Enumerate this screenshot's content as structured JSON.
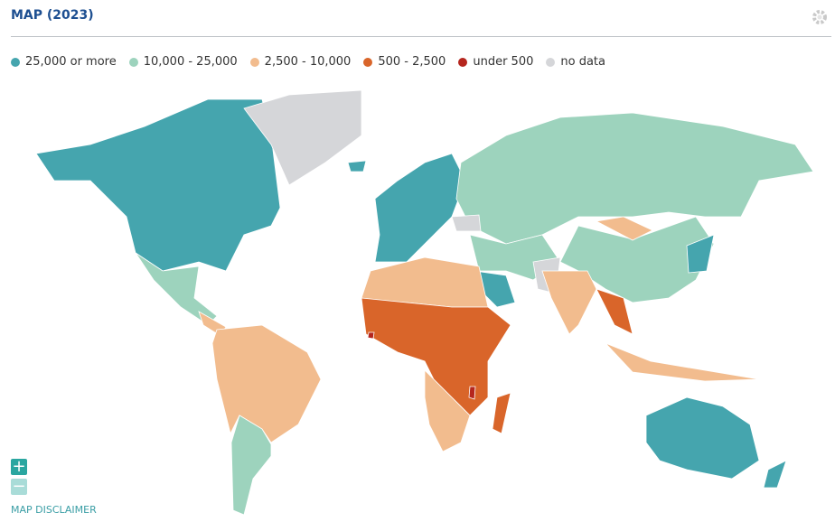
{
  "header": {
    "title": "MAP (2023)"
  },
  "legend": [
    {
      "label": "25,000 or more",
      "color": "#45a5ae"
    },
    {
      "label": "10,000 - 25,000",
      "color": "#9dd3bd"
    },
    {
      "label": "2,500 - 10,000",
      "color": "#f2bc8e"
    },
    {
      "label": "500 - 2,500",
      "color": "#d9652a"
    },
    {
      "label": "under 500",
      "color": "#b5261e"
    },
    {
      "label": "no data",
      "color": "#d5d6d9"
    }
  ],
  "footer": {
    "disclaimer": "MAP DISCLAIMER"
  }
}
